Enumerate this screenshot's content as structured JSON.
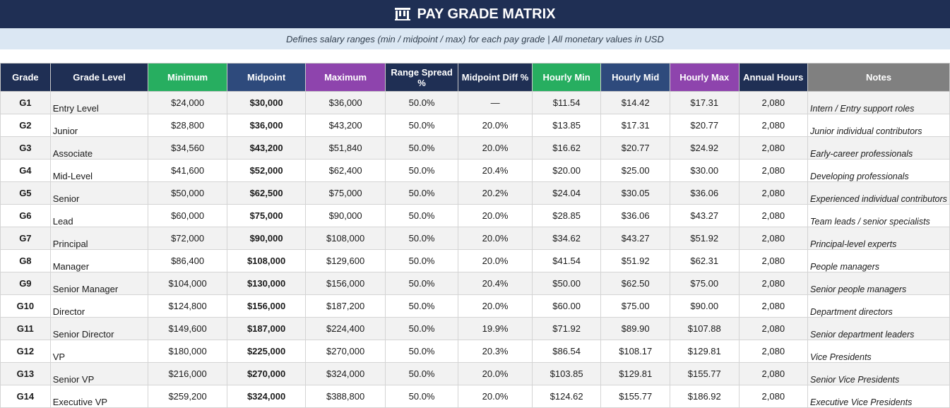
{
  "header": {
    "title": "PAY GRADE MATRIX",
    "icon": "bank-building-icon",
    "subtitle": "Defines salary ranges (min / midpoint / max) for each pay grade  |  All monetary values in USD"
  },
  "colors": {
    "title_bg": "#1f2f54",
    "subtitle_bg": "#dbe7f3",
    "header_green": "#27ae60",
    "header_blue": "#2e4a7c",
    "header_purple": "#8e44ad",
    "header_gray": "#808080",
    "midpoint_text": "#1414c8"
  },
  "table": {
    "columns": [
      "Grade",
      "Grade Level",
      "Minimum",
      "Midpoint",
      "Maximum",
      "Range Spread %",
      "Midpoint Diff %",
      "Hourly Min",
      "Hourly Mid",
      "Hourly Max",
      "Annual Hours",
      "Notes"
    ],
    "rows": [
      [
        "G1",
        "Entry Level",
        "$24,000",
        "$30,000",
        "$36,000",
        "50.0%",
        "—",
        "$11.54",
        "$14.42",
        "$17.31",
        "2,080",
        "Intern / Entry support roles"
      ],
      [
        "G2",
        "Junior",
        "$28,800",
        "$36,000",
        "$43,200",
        "50.0%",
        "20.0%",
        "$13.85",
        "$17.31",
        "$20.77",
        "2,080",
        "Junior individual contributors"
      ],
      [
        "G3",
        "Associate",
        "$34,560",
        "$43,200",
        "$51,840",
        "50.0%",
        "20.0%",
        "$16.62",
        "$20.77",
        "$24.92",
        "2,080",
        "Early-career professionals"
      ],
      [
        "G4",
        "Mid-Level",
        "$41,600",
        "$52,000",
        "$62,400",
        "50.0%",
        "20.4%",
        "$20.00",
        "$25.00",
        "$30.00",
        "2,080",
        "Developing professionals"
      ],
      [
        "G5",
        "Senior",
        "$50,000",
        "$62,500",
        "$75,000",
        "50.0%",
        "20.2%",
        "$24.04",
        "$30.05",
        "$36.06",
        "2,080",
        "Experienced individual contributors"
      ],
      [
        "G6",
        "Lead",
        "$60,000",
        "$75,000",
        "$90,000",
        "50.0%",
        "20.0%",
        "$28.85",
        "$36.06",
        "$43.27",
        "2,080",
        "Team leads / senior specialists"
      ],
      [
        "G7",
        "Principal",
        "$72,000",
        "$90,000",
        "$108,000",
        "50.0%",
        "20.0%",
        "$34.62",
        "$43.27",
        "$51.92",
        "2,080",
        "Principal-level experts"
      ],
      [
        "G8",
        "Manager",
        "$86,400",
        "$108,000",
        "$129,600",
        "50.0%",
        "20.0%",
        "$41.54",
        "$51.92",
        "$62.31",
        "2,080",
        "People managers"
      ],
      [
        "G9",
        "Senior Manager",
        "$104,000",
        "$130,000",
        "$156,000",
        "50.0%",
        "20.4%",
        "$50.00",
        "$62.50",
        "$75.00",
        "2,080",
        "Senior people managers"
      ],
      [
        "G10",
        "Director",
        "$124,800",
        "$156,000",
        "$187,200",
        "50.0%",
        "20.0%",
        "$60.00",
        "$75.00",
        "$90.00",
        "2,080",
        "Department directors"
      ],
      [
        "G11",
        "Senior Director",
        "$149,600",
        "$187,000",
        "$224,400",
        "50.0%",
        "19.9%",
        "$71.92",
        "$89.90",
        "$107.88",
        "2,080",
        "Senior department leaders"
      ],
      [
        "G12",
        "VP",
        "$180,000",
        "$225,000",
        "$270,000",
        "50.0%",
        "20.3%",
        "$86.54",
        "$108.17",
        "$129.81",
        "2,080",
        "Vice Presidents"
      ],
      [
        "G13",
        "Senior VP",
        "$216,000",
        "$270,000",
        "$324,000",
        "50.0%",
        "20.0%",
        "$103.85",
        "$129.81",
        "$155.77",
        "2,080",
        "Senior Vice Presidents"
      ],
      [
        "G14",
        "Executive VP",
        "$259,200",
        "$324,000",
        "$388,800",
        "50.0%",
        "20.0%",
        "$124.62",
        "$155.77",
        "$186.92",
        "2,080",
        "Executive Vice Presidents"
      ]
    ]
  }
}
